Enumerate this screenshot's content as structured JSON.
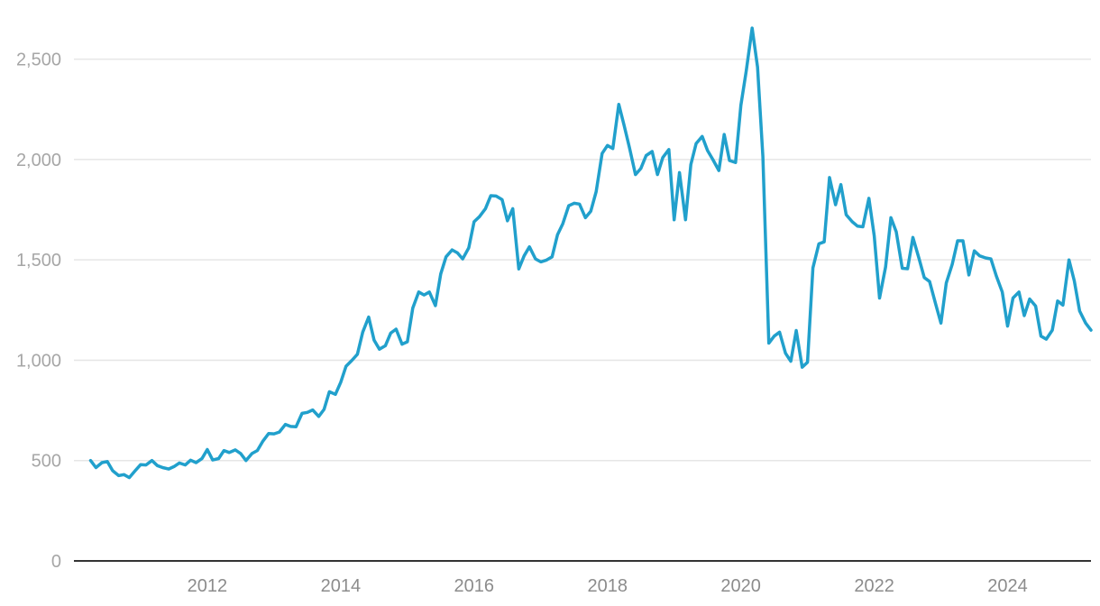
{
  "chart_data": {
    "type": "line",
    "title": "",
    "xlabel": "",
    "ylabel": "",
    "xlim": [
      2010.0,
      2025.25
    ],
    "ylim": [
      0,
      2750
    ],
    "grid": true,
    "legend": "none",
    "line_color": "#21a0cc",
    "gridline_color": "#e6e6e6",
    "axis_color": "#333333",
    "y_ticks": [
      {
        "value": 0,
        "label": "0"
      },
      {
        "value": 500,
        "label": "500"
      },
      {
        "value": 1000,
        "label": "1,000"
      },
      {
        "value": 1500,
        "label": "1,500"
      },
      {
        "value": 2000,
        "label": "2,000"
      },
      {
        "value": 2500,
        "label": "2,500"
      }
    ],
    "x_ticks": [
      {
        "value": 2012,
        "label": "2012"
      },
      {
        "value": 2014,
        "label": "2014"
      },
      {
        "value": 2016,
        "label": "2016"
      },
      {
        "value": 2018,
        "label": "2018"
      },
      {
        "value": 2020,
        "label": "2020"
      },
      {
        "value": 2022,
        "label": "2022"
      },
      {
        "value": 2024,
        "label": "2024"
      }
    ],
    "series": [
      {
        "points": [
          [
            2010.25,
            500
          ],
          [
            2010.33,
            465
          ],
          [
            2010.42,
            490
          ],
          [
            2010.5,
            495
          ],
          [
            2010.58,
            450
          ],
          [
            2010.67,
            425
          ],
          [
            2010.75,
            430
          ],
          [
            2010.83,
            415
          ],
          [
            2010.92,
            450
          ],
          [
            2011.0,
            480
          ],
          [
            2011.08,
            478
          ],
          [
            2011.17,
            500
          ],
          [
            2011.25,
            475
          ],
          [
            2011.33,
            465
          ],
          [
            2011.42,
            458
          ],
          [
            2011.5,
            470
          ],
          [
            2011.58,
            488
          ],
          [
            2011.67,
            478
          ],
          [
            2011.75,
            502
          ],
          [
            2011.83,
            490
          ],
          [
            2011.92,
            510
          ],
          [
            2012.0,
            555
          ],
          [
            2012.08,
            503
          ],
          [
            2012.17,
            510
          ],
          [
            2012.25,
            550
          ],
          [
            2012.33,
            540
          ],
          [
            2012.42,
            553
          ],
          [
            2012.5,
            535
          ],
          [
            2012.58,
            500
          ],
          [
            2012.67,
            535
          ],
          [
            2012.75,
            550
          ],
          [
            2012.83,
            595
          ],
          [
            2012.92,
            635
          ],
          [
            2013.0,
            633
          ],
          [
            2013.08,
            642
          ],
          [
            2013.17,
            680
          ],
          [
            2013.25,
            670
          ],
          [
            2013.33,
            668
          ],
          [
            2013.42,
            735
          ],
          [
            2013.5,
            740
          ],
          [
            2013.58,
            752
          ],
          [
            2013.67,
            720
          ],
          [
            2013.75,
            755
          ],
          [
            2013.83,
            843
          ],
          [
            2013.92,
            830
          ],
          [
            2014.0,
            890
          ],
          [
            2014.08,
            970
          ],
          [
            2014.17,
            1000
          ],
          [
            2014.25,
            1030
          ],
          [
            2014.33,
            1140
          ],
          [
            2014.42,
            1215
          ],
          [
            2014.5,
            1100
          ],
          [
            2014.58,
            1055
          ],
          [
            2014.67,
            1072
          ],
          [
            2014.75,
            1135
          ],
          [
            2014.83,
            1155
          ],
          [
            2014.92,
            1080
          ],
          [
            2015.0,
            1092
          ],
          [
            2015.08,
            1260
          ],
          [
            2015.17,
            1340
          ],
          [
            2015.25,
            1325
          ],
          [
            2015.33,
            1340
          ],
          [
            2015.42,
            1272
          ],
          [
            2015.5,
            1430
          ],
          [
            2015.58,
            1515
          ],
          [
            2015.67,
            1550
          ],
          [
            2015.75,
            1535
          ],
          [
            2015.83,
            1505
          ],
          [
            2015.92,
            1560
          ],
          [
            2016.0,
            1690
          ],
          [
            2016.08,
            1715
          ],
          [
            2016.17,
            1755
          ],
          [
            2016.25,
            1820
          ],
          [
            2016.33,
            1818
          ],
          [
            2016.42,
            1800
          ],
          [
            2016.5,
            1695
          ],
          [
            2016.58,
            1755
          ],
          [
            2016.67,
            1455
          ],
          [
            2016.75,
            1520
          ],
          [
            2016.83,
            1565
          ],
          [
            2016.92,
            1505
          ],
          [
            2017.0,
            1490
          ],
          [
            2017.08,
            1498
          ],
          [
            2017.17,
            1515
          ],
          [
            2017.25,
            1625
          ],
          [
            2017.33,
            1680
          ],
          [
            2017.42,
            1770
          ],
          [
            2017.5,
            1782
          ],
          [
            2017.58,
            1778
          ],
          [
            2017.67,
            1710
          ],
          [
            2017.75,
            1742
          ],
          [
            2017.83,
            1840
          ],
          [
            2017.92,
            2030
          ],
          [
            2018.0,
            2070
          ],
          [
            2018.08,
            2055
          ],
          [
            2018.17,
            2275
          ],
          [
            2018.25,
            2170
          ],
          [
            2018.33,
            2060
          ],
          [
            2018.42,
            1925
          ],
          [
            2018.5,
            1955
          ],
          [
            2018.58,
            2020
          ],
          [
            2018.67,
            2040
          ],
          [
            2018.75,
            1925
          ],
          [
            2018.83,
            2010
          ],
          [
            2018.92,
            2050
          ],
          [
            2019.0,
            1700
          ],
          [
            2019.08,
            1935
          ],
          [
            2019.17,
            1700
          ],
          [
            2019.25,
            1975
          ],
          [
            2019.33,
            2080
          ],
          [
            2019.42,
            2115
          ],
          [
            2019.5,
            2045
          ],
          [
            2019.58,
            2000
          ],
          [
            2019.67,
            1945
          ],
          [
            2019.75,
            2125
          ],
          [
            2019.83,
            1995
          ],
          [
            2019.92,
            1985
          ],
          [
            2020.0,
            2270
          ],
          [
            2020.08,
            2440
          ],
          [
            2020.17,
            2655
          ],
          [
            2020.25,
            2460
          ],
          [
            2020.33,
            2015
          ],
          [
            2020.42,
            1085
          ],
          [
            2020.5,
            1120
          ],
          [
            2020.58,
            1140
          ],
          [
            2020.67,
            1035
          ],
          [
            2020.75,
            995
          ],
          [
            2020.83,
            1148
          ],
          [
            2020.92,
            965
          ],
          [
            2021.0,
            990
          ],
          [
            2021.08,
            1460
          ],
          [
            2021.17,
            1580
          ],
          [
            2021.25,
            1590
          ],
          [
            2021.33,
            1910
          ],
          [
            2021.42,
            1775
          ],
          [
            2021.5,
            1875
          ],
          [
            2021.58,
            1725
          ],
          [
            2021.67,
            1690
          ],
          [
            2021.75,
            1668
          ],
          [
            2021.83,
            1665
          ],
          [
            2021.92,
            1807
          ],
          [
            2022.0,
            1620
          ],
          [
            2022.08,
            1310
          ],
          [
            2022.17,
            1465
          ],
          [
            2022.25,
            1710
          ],
          [
            2022.33,
            1640
          ],
          [
            2022.42,
            1458
          ],
          [
            2022.5,
            1456
          ],
          [
            2022.58,
            1612
          ],
          [
            2022.67,
            1508
          ],
          [
            2022.75,
            1412
          ],
          [
            2022.83,
            1392
          ],
          [
            2022.92,
            1280
          ],
          [
            2023.0,
            1185
          ],
          [
            2023.08,
            1385
          ],
          [
            2023.17,
            1478
          ],
          [
            2023.25,
            1595
          ],
          [
            2023.33,
            1595
          ],
          [
            2023.42,
            1425
          ],
          [
            2023.5,
            1545
          ],
          [
            2023.58,
            1520
          ],
          [
            2023.67,
            1510
          ],
          [
            2023.75,
            1505
          ],
          [
            2023.83,
            1420
          ],
          [
            2023.92,
            1340
          ],
          [
            2024.0,
            1170
          ],
          [
            2024.08,
            1310
          ],
          [
            2024.17,
            1340
          ],
          [
            2024.25,
            1222
          ],
          [
            2024.33,
            1305
          ],
          [
            2024.42,
            1270
          ],
          [
            2024.5,
            1120
          ],
          [
            2024.58,
            1105
          ],
          [
            2024.67,
            1150
          ],
          [
            2024.75,
            1295
          ],
          [
            2024.83,
            1275
          ],
          [
            2024.92,
            1500
          ],
          [
            2025.0,
            1395
          ],
          [
            2025.08,
            1245
          ],
          [
            2025.17,
            1185
          ],
          [
            2025.25,
            1150
          ]
        ]
      }
    ]
  }
}
